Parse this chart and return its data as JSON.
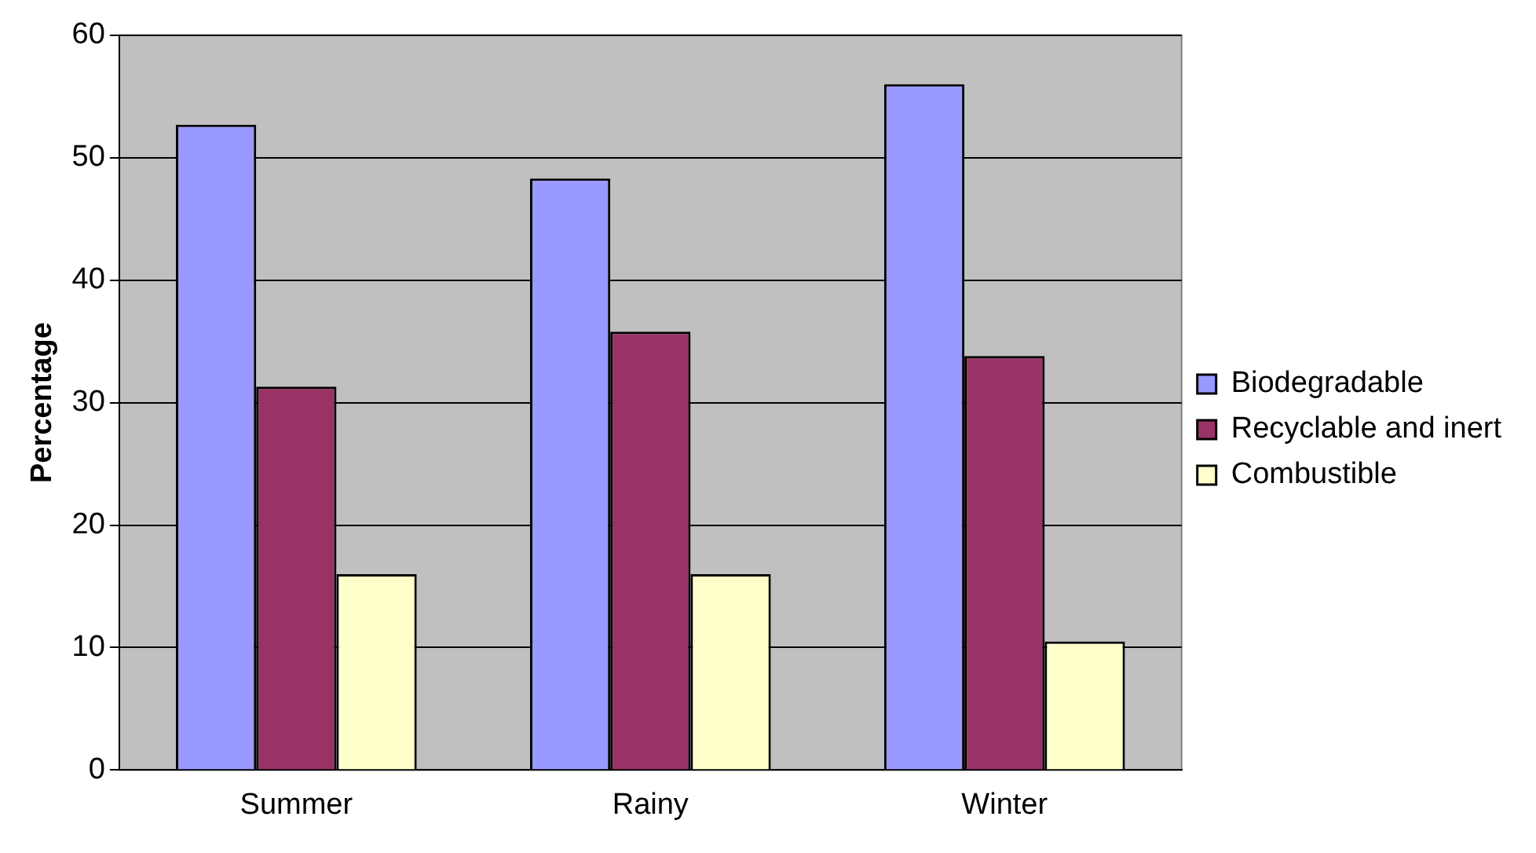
{
  "chart_data": {
    "type": "bar",
    "ylabel": "Percentage",
    "categories": [
      "Summer",
      "Rainy",
      "Winter"
    ],
    "series": [
      {
        "name": "Biodegradable",
        "color": "#9999ff",
        "values": [
          52.7,
          48.3,
          56.0
        ]
      },
      {
        "name": "Recyclable and inert",
        "color": "#993366",
        "values": [
          31.3,
          35.8,
          33.8
        ]
      },
      {
        "name": "Combustible",
        "color": "#ffffcc",
        "values": [
          16.0,
          16.0,
          10.5
        ]
      }
    ],
    "ylim": [
      0,
      60
    ],
    "yticks": [
      0,
      10,
      20,
      30,
      40,
      50,
      60
    ],
    "grid": "y",
    "legend": "right"
  }
}
